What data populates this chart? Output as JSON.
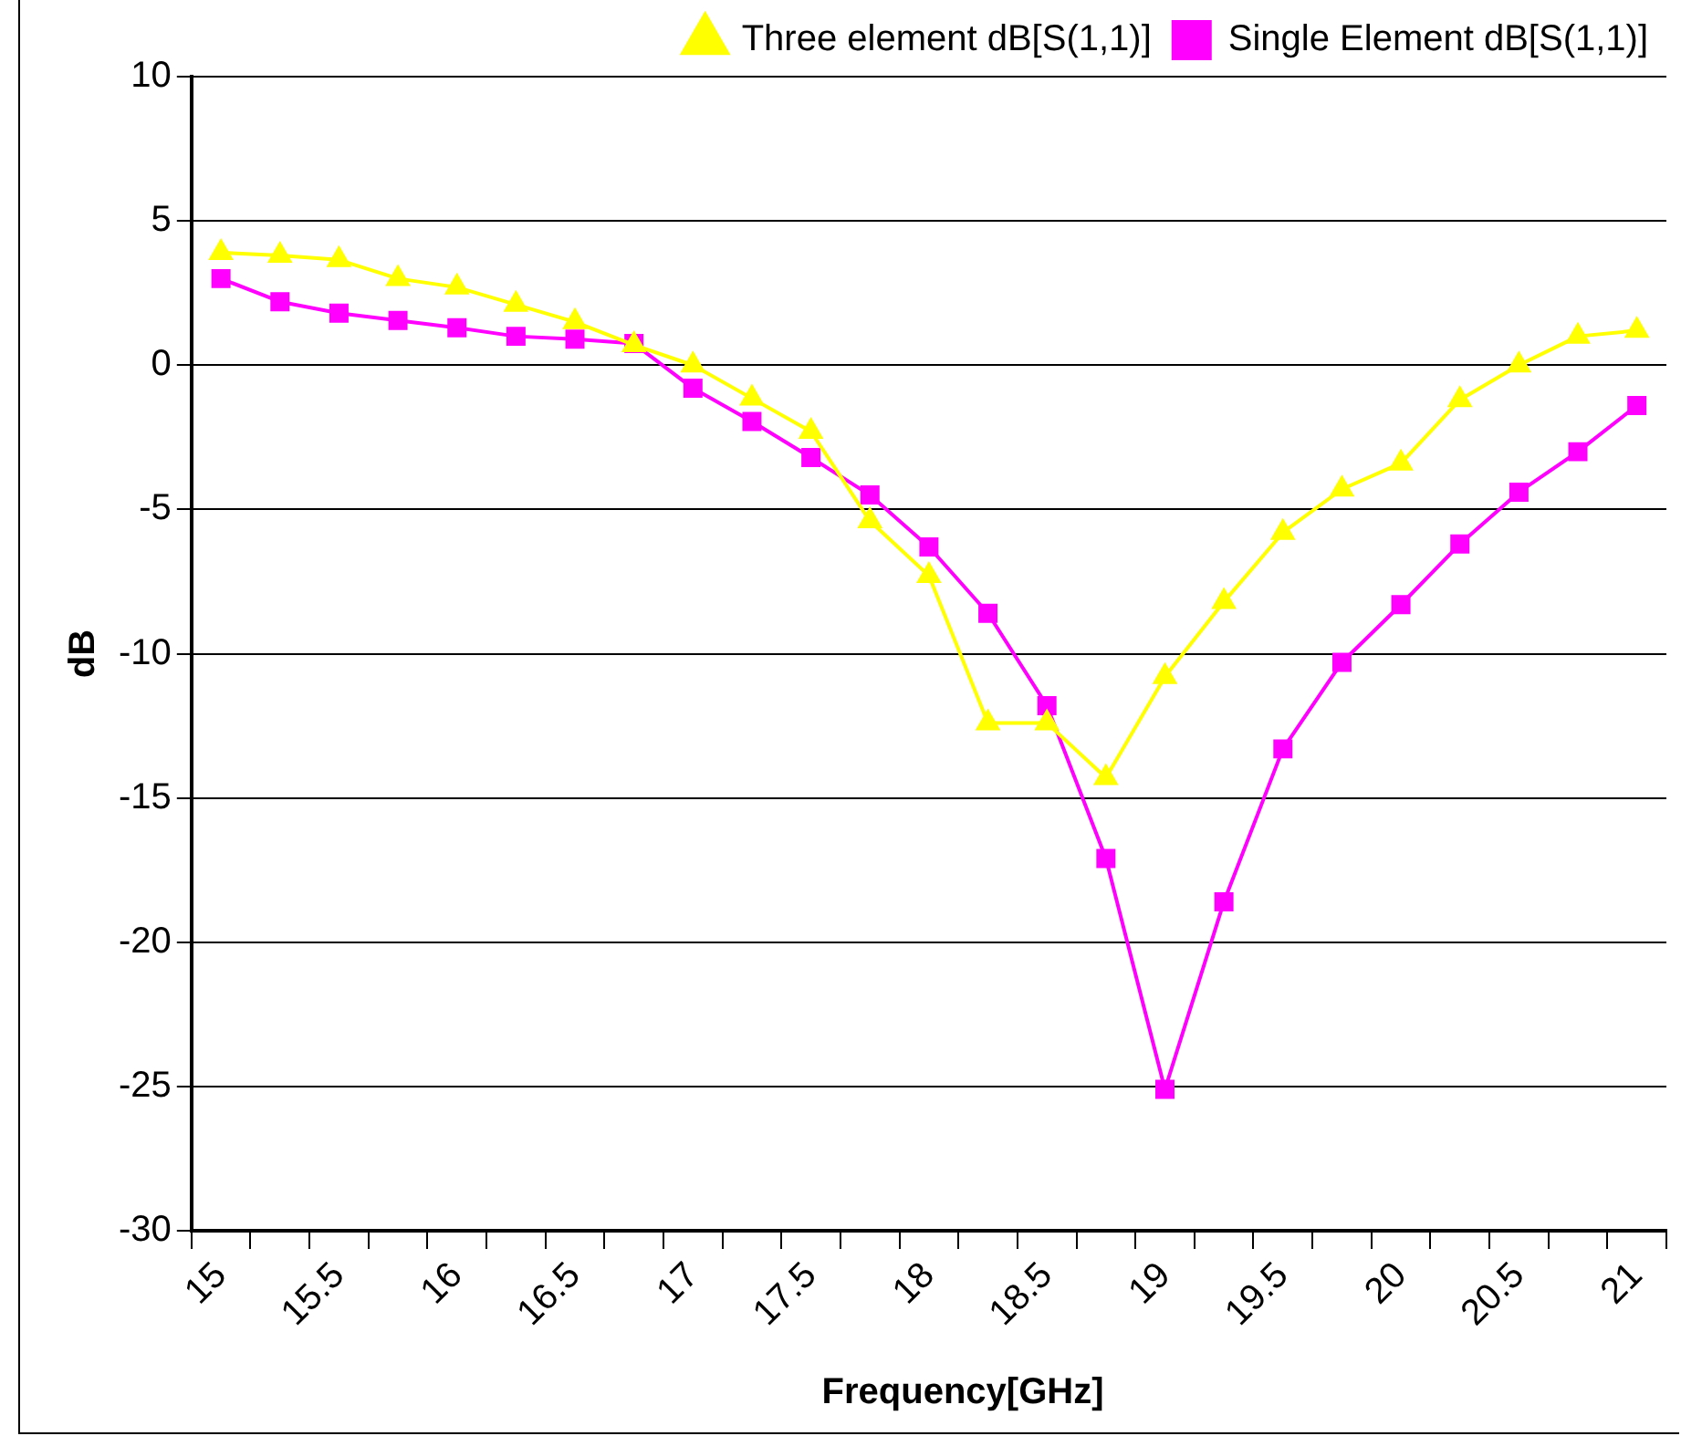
{
  "chart_data": {
    "type": "line",
    "xlabel": "Frequency[GHz]",
    "ylabel": "dB",
    "categories": [
      "15",
      null,
      "15.5",
      null,
      "16",
      null,
      "16.5",
      null,
      "17",
      null,
      "17.5",
      null,
      "18",
      null,
      "18.5",
      null,
      "19",
      null,
      "19.5",
      null,
      "20",
      null,
      "20.5",
      null,
      "21"
    ],
    "series": [
      {
        "name": "Single Element dB[S(1,1)]",
        "color": "#ff00ff",
        "marker": "square",
        "values": [
          3.0,
          2.2,
          1.8,
          1.55,
          1.3,
          1.0,
          0.9,
          0.75,
          -0.8,
          -1.95,
          -3.2,
          -4.5,
          -6.3,
          -8.6,
          -11.8,
          -17.1,
          -25.1,
          -18.6,
          -13.3,
          -10.3,
          -8.3,
          -6.2,
          -4.4,
          -3.0,
          -1.4
        ]
      },
      {
        "name": "Three element dB[S(1,1)]",
        "color": "#ffff00",
        "marker": "triangle",
        "values": [
          3.9,
          3.8,
          3.65,
          3.0,
          2.7,
          2.1,
          1.5,
          0.7,
          0,
          -1.15,
          -2.3,
          -5.4,
          -7.3,
          -12.4,
          -12.4,
          -14.3,
          -10.8,
          -8.2,
          -5.8,
          -4.3,
          -3.4,
          -1.2,
          0,
          1.0,
          1.2
        ]
      }
    ],
    "ylim": [
      -30,
      10
    ],
    "yticks": [
      -30,
      -25,
      -20,
      -15,
      -10,
      -5,
      0,
      5,
      10
    ],
    "grid": "y",
    "legend": "top right",
    "line_style": "solid"
  }
}
